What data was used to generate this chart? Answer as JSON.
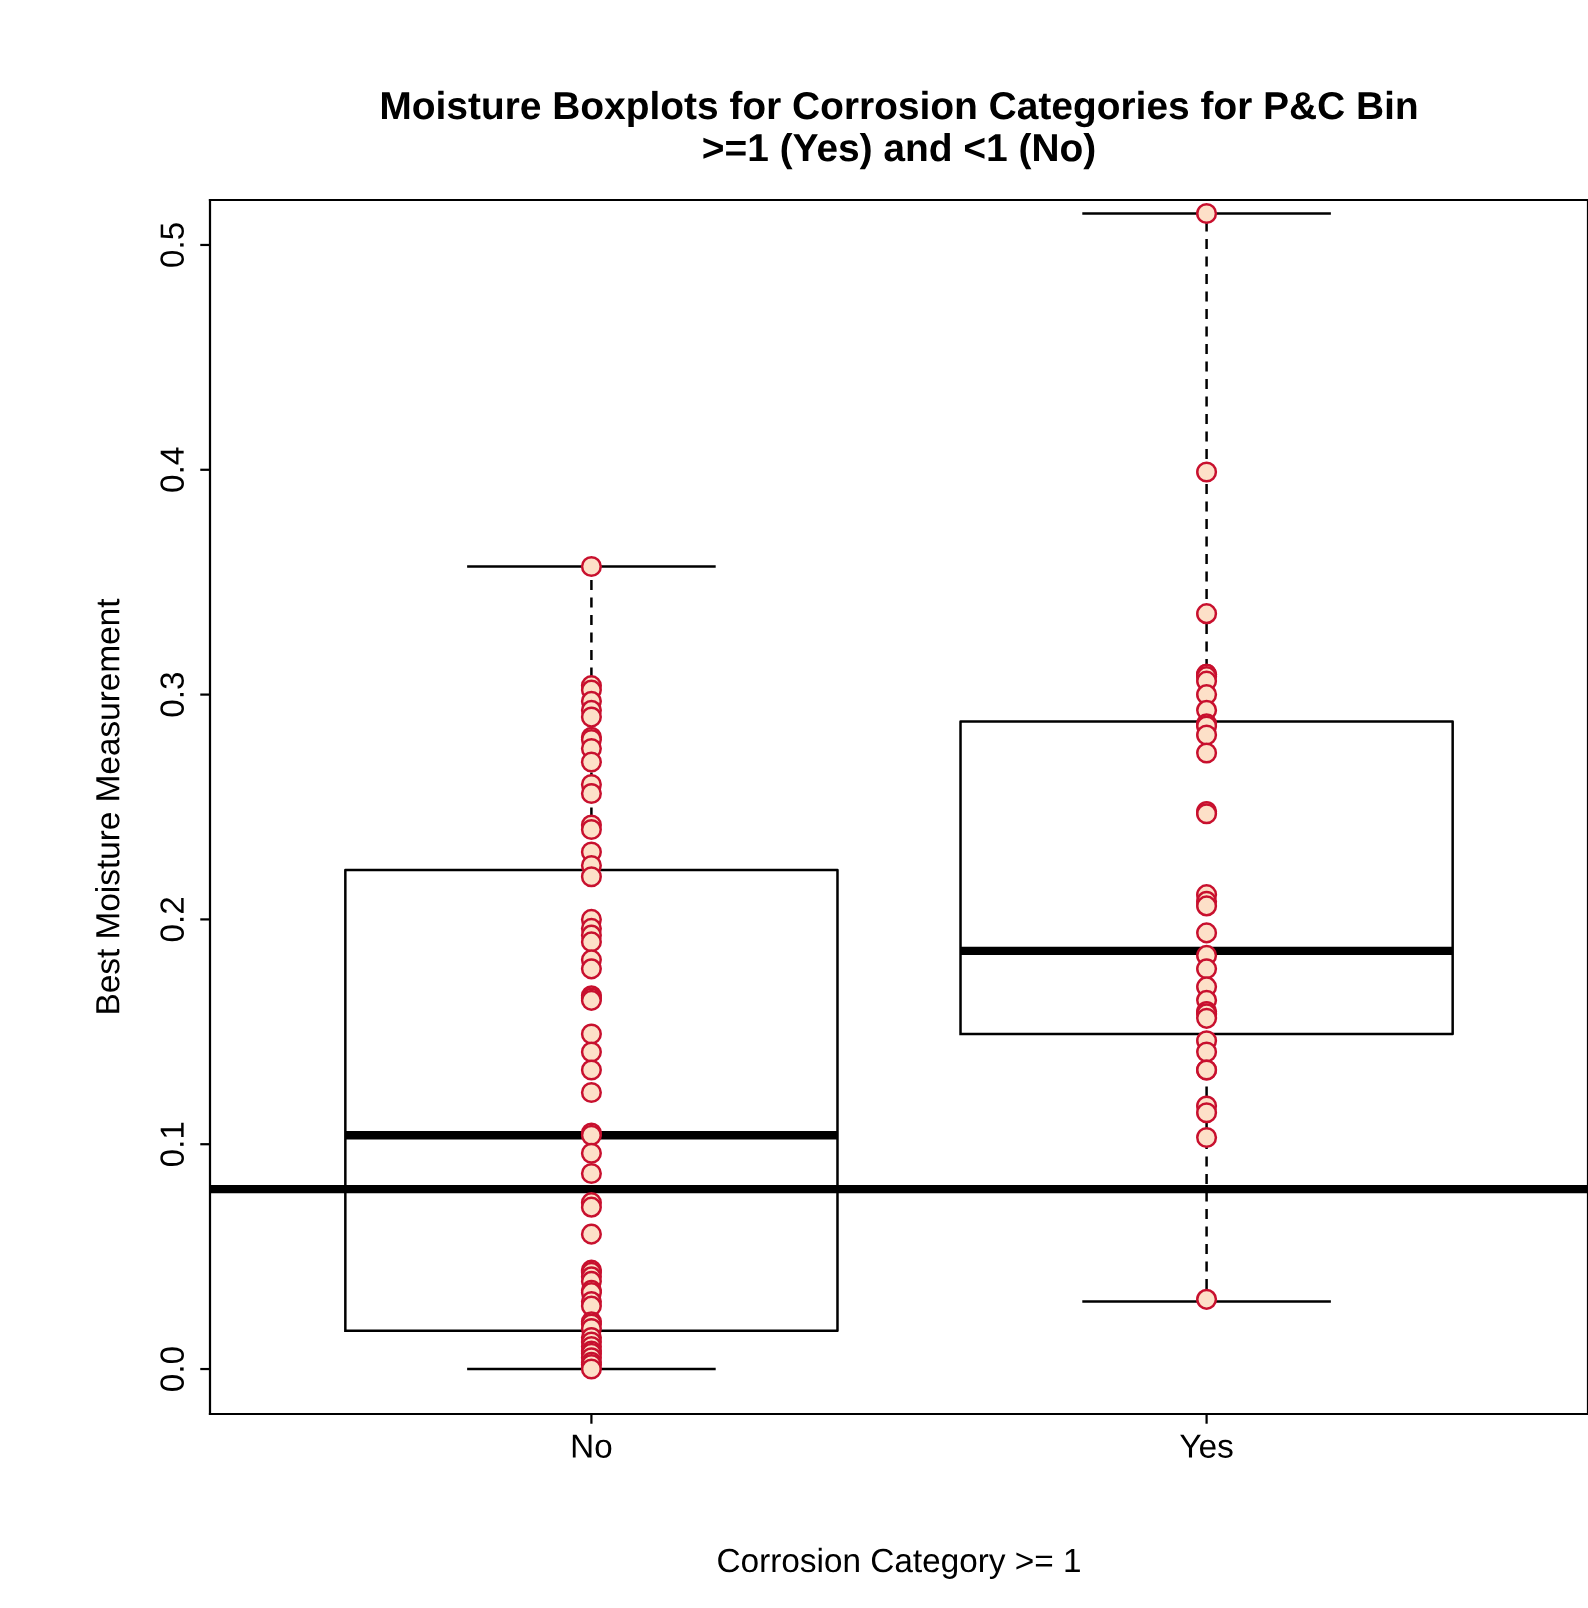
{
  "chart_data": {
    "type": "box",
    "title": "Moisture Boxplots for Corrosion Categories for P&C Bin\n>=1 (Yes) and <1 (No)",
    "xlabel": "Corrosion Category >= 1",
    "ylabel": "Best Moisture Measurement",
    "categories": [
      "No",
      "Yes"
    ],
    "boxes": [
      {
        "low": 0.0,
        "q1": 0.017,
        "median": 0.104,
        "q3": 0.222,
        "high": 0.357
      },
      {
        "low": 0.03,
        "q1": 0.149,
        "median": 0.186,
        "q3": 0.288,
        "high": 0.514
      }
    ],
    "series": [
      {
        "type": "scatter",
        "color": "#fde0c8",
        "marker": "circle",
        "x": [
          "No",
          "No",
          "No",
          "No",
          "No",
          "No",
          "No",
          "No",
          "No",
          "No",
          "No",
          "No",
          "No",
          "No",
          "No",
          "No",
          "No",
          "No",
          "No",
          "No",
          "No",
          "No",
          "No",
          "No",
          "No",
          "No",
          "No",
          "No",
          "No",
          "No",
          "No",
          "No",
          "No",
          "No",
          "No",
          "No",
          "No",
          "No",
          "No",
          "No",
          "No",
          "No",
          "No",
          "No",
          "No",
          "No",
          "No",
          "No",
          "No",
          "No",
          "No",
          "No",
          "No",
          "No",
          "No",
          "No",
          "No",
          "Yes",
          "Yes",
          "Yes",
          "Yes",
          "Yes",
          "Yes",
          "Yes",
          "Yes",
          "Yes",
          "Yes",
          "Yes",
          "Yes",
          "Yes",
          "Yes",
          "Yes",
          "Yes",
          "Yes",
          "Yes",
          "Yes",
          "Yes",
          "Yes",
          "Yes",
          "Yes",
          "Yes",
          "Yes",
          "Yes",
          "Yes",
          "Yes",
          "Yes",
          "Yes",
          "Yes",
          "Yes",
          "Yes",
          "Yes"
        ],
        "values": [
          0.357,
          0.304,
          0.302,
          0.297,
          0.293,
          0.29,
          0.281,
          0.28,
          0.276,
          0.27,
          0.26,
          0.256,
          0.242,
          0.24,
          0.23,
          0.224,
          0.219,
          0.2,
          0.196,
          0.193,
          0.19,
          0.182,
          0.178,
          0.166,
          0.165,
          0.164,
          0.149,
          0.141,
          0.133,
          0.123,
          0.105,
          0.104,
          0.096,
          0.087,
          0.074,
          0.072,
          0.06,
          0.044,
          0.043,
          0.041,
          0.039,
          0.035,
          0.034,
          0.03,
          0.028,
          0.021,
          0.02,
          0.018,
          0.014,
          0.012,
          0.01,
          0.008,
          0.007,
          0.005,
          0.003,
          0.002,
          0.0,
          0.514,
          0.399,
          0.336,
          0.309,
          0.309,
          0.308,
          0.306,
          0.3,
          0.293,
          0.287,
          0.286,
          0.282,
          0.274,
          0.248,
          0.247,
          0.211,
          0.208,
          0.206,
          0.194,
          0.184,
          0.178,
          0.17,
          0.164,
          0.159,
          0.158,
          0.156,
          0.146,
          0.141,
          0.133,
          0.133,
          0.117,
          0.114,
          0.103,
          0.031
        ]
      }
    ],
    "ref_lines": [
      {
        "axis": "y",
        "value": 0.08,
        "color": "#000000"
      }
    ],
    "ylim": [
      -0.02,
      0.52
    ],
    "yticks": [
      {
        "value": 0,
        "label": "0.0"
      },
      0.1,
      0.2,
      0.3,
      0.4,
      0.5
    ],
    "grid": false,
    "legend": false
  }
}
